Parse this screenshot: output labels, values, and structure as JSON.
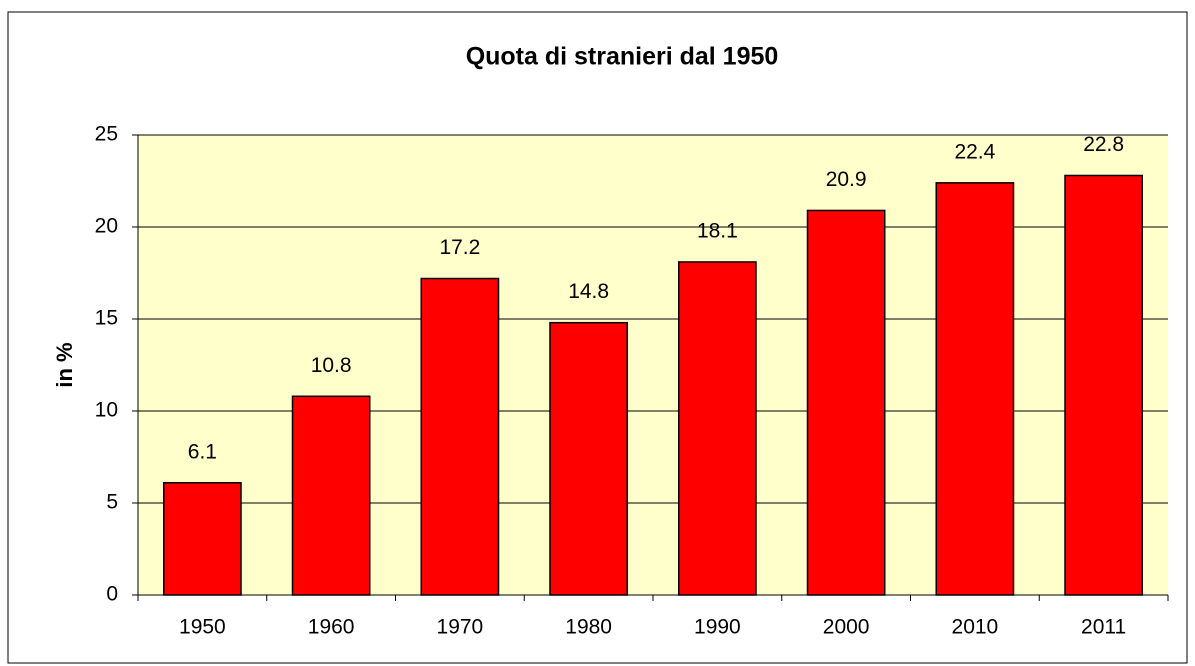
{
  "chart_data": {
    "type": "bar",
    "title": "Quota di stranieri dal 1950",
    "y_label": "in %",
    "categories": [
      "1950",
      "1960",
      "1970",
      "1980",
      "1990",
      "2000",
      "2010",
      "2011"
    ],
    "values": [
      6.1,
      10.8,
      17.2,
      14.8,
      18.1,
      20.9,
      22.4,
      22.8
    ],
    "color": "#ff0000",
    "ylim": [
      0,
      25
    ],
    "yticks": [
      0,
      5,
      10,
      15,
      20,
      25
    ],
    "grid": true
  }
}
